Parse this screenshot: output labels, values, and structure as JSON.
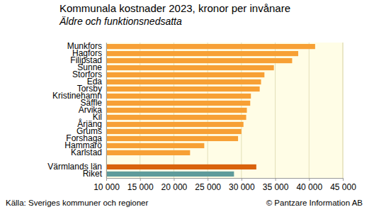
{
  "chart_data": {
    "type": "bar",
    "orientation": "horizontal",
    "title": "Kommunala kostnader 2023, kronor per invånare",
    "subtitle": "Äldre och funktionsnedsatta",
    "categories": [
      "Munkfors",
      "Hagfors",
      "Filipstad",
      "Sunne",
      "Storfors",
      "Eda",
      "Torsby",
      "Kristinehamn",
      "Säffle",
      "Arvika",
      "Kil",
      "Årjäng",
      "Grums",
      "Forshaga",
      "Hammarö",
      "Karlstad",
      null,
      "Värmlands län",
      "Riket"
    ],
    "values": [
      40900,
      38400,
      37500,
      34800,
      33400,
      32900,
      32700,
      31400,
      31300,
      30800,
      30700,
      30300,
      30000,
      29500,
      24500,
      22400,
      null,
      32200,
      28900
    ],
    "colors": [
      "#f7a035",
      "#f7a035",
      "#f7a035",
      "#f7a035",
      "#f7a035",
      "#f7a035",
      "#f7a035",
      "#f7a035",
      "#f7a035",
      "#f7a035",
      "#f7a035",
      "#f7a035",
      "#f7a035",
      "#f7a035",
      "#f7a035",
      "#f7a035",
      null,
      "#d9620c",
      "#5f9b9b"
    ],
    "xlim": [
      10000,
      45000
    ],
    "xticks": [
      {
        "value": 10000,
        "label": "10 000"
      },
      {
        "value": 15000,
        "label": "15 000"
      },
      {
        "value": 20000,
        "label": "20 000"
      },
      {
        "value": 25000,
        "label": "25 000"
      },
      {
        "value": 30000,
        "label": "30 000"
      },
      {
        "value": 35000,
        "label": "35 000"
      },
      {
        "value": 40000,
        "label": "40 000"
      },
      {
        "value": 45000,
        "label": "45 000"
      }
    ],
    "grid": true,
    "annotations": [
      "Källa: Sveriges kommuner och regioner",
      "© Pantzare Information AB"
    ]
  }
}
